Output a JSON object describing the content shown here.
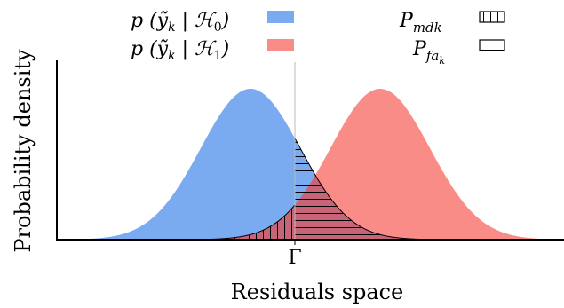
{
  "legend": {
    "h0": {
      "label": "p (ỹ_k | ℋ_0)",
      "color": "#7aaaf0",
      "icon": "swatch-solid"
    },
    "h1": {
      "label": "p (ỹ_k | ℋ_1)",
      "color": "#fa8c88",
      "icon": "swatch-solid"
    },
    "pmd": {
      "label": "P_mdk",
      "icon": "vertical-hatch-swatch"
    },
    "pfa": {
      "label": "P_fa_k",
      "icon": "horizontal-hatch-swatch"
    }
  },
  "axes": {
    "ylabel": "Probability density",
    "xlabel": "Residuals space",
    "threshold_label": "Γ"
  },
  "colors": {
    "overlap": "#c86478",
    "threshold_line": "#bbbbbb",
    "axis": "#000000"
  }
}
